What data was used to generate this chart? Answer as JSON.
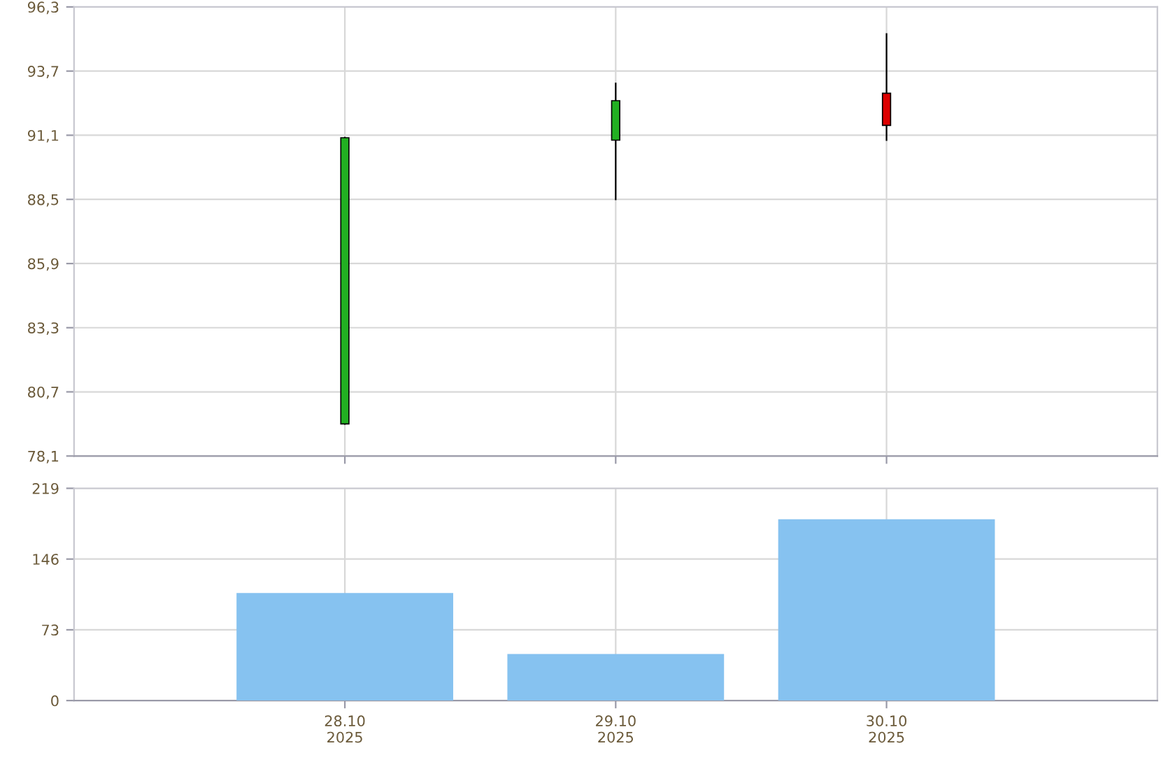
{
  "chart_data": [
    {
      "type": "candlestick",
      "categories": [
        null,
        null,
        null
      ],
      "ohlc": [
        [
          79.4,
          91.0,
          79.4,
          91.0
        ],
        [
          90.9,
          93.2,
          88.5,
          92.5
        ],
        [
          92.8,
          95.2,
          90.9,
          91.5
        ]
      ],
      "colors": [
        "#22b022",
        "#22b022",
        "#dd0000"
      ],
      "ylim": [
        78.1,
        96.3
      ],
      "yticks": [
        {
          "value": 78.1,
          "label": "78,1"
        },
        {
          "value": 80.7,
          "label": "80,7"
        },
        {
          "value": 83.3,
          "label": "83,3"
        },
        {
          "value": 85.9,
          "label": "85,9"
        },
        {
          "value": 88.5,
          "label": "88,5"
        },
        {
          "value": 91.1,
          "label": "91,1"
        },
        {
          "value": 93.7,
          "label": "93,7"
        },
        {
          "value": 96.3,
          "label": "96,3"
        }
      ],
      "grid": true,
      "tick_labels": "y"
    },
    {
      "type": "bar",
      "categories": [
        "28.10\n2025",
        "29.10\n2025",
        "30.10\n2025"
      ],
      "values": [
        111,
        48,
        187
      ],
      "color": "#86c2f0",
      "ylim": [
        0,
        219
      ],
      "yticks": [
        0,
        73,
        146,
        219
      ],
      "grid": true
    }
  ]
}
